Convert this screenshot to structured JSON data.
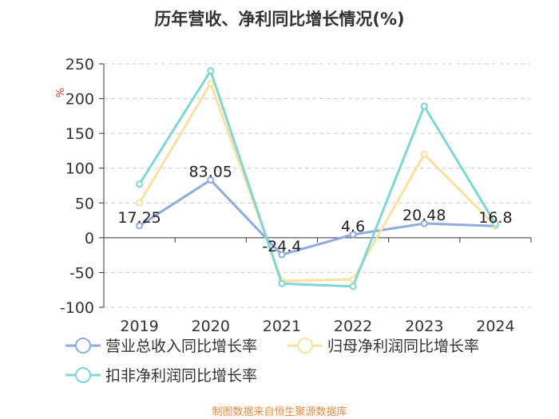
{
  "chart_data": {
    "type": "line",
    "title": "历年营收、净利同比增长情况(%)",
    "ylabel": "%",
    "categories": [
      "2019",
      "2020",
      "2021",
      "2022",
      "2023",
      "2024"
    ],
    "ylim": [
      -100,
      250
    ],
    "yticks": [
      250,
      200,
      150,
      100,
      50,
      0,
      -50,
      -100
    ],
    "grid": true,
    "legend_position": "bottom",
    "series": [
      {
        "name": "营业总收入同比增长率",
        "color": "#8faadc",
        "values": [
          17.25,
          83.05,
          -24.4,
          4.6,
          20.48,
          16.8
        ],
        "labels": [
          "17.25",
          "83.05",
          "-24.4",
          "4.6",
          "20.48",
          "16.8"
        ]
      },
      {
        "name": "归母净利润同比增长率",
        "color": "#fbe0a0",
        "values": [
          50,
          222,
          -62,
          -60,
          120,
          17
        ]
      },
      {
        "name": "扣非净利润同比增长率",
        "color": "#7fd6d6",
        "values": [
          77,
          240,
          -66,
          -70,
          189,
          20
        ]
      }
    ]
  },
  "footer": {
    "source": "制图数据来自恒生聚源数据库"
  }
}
